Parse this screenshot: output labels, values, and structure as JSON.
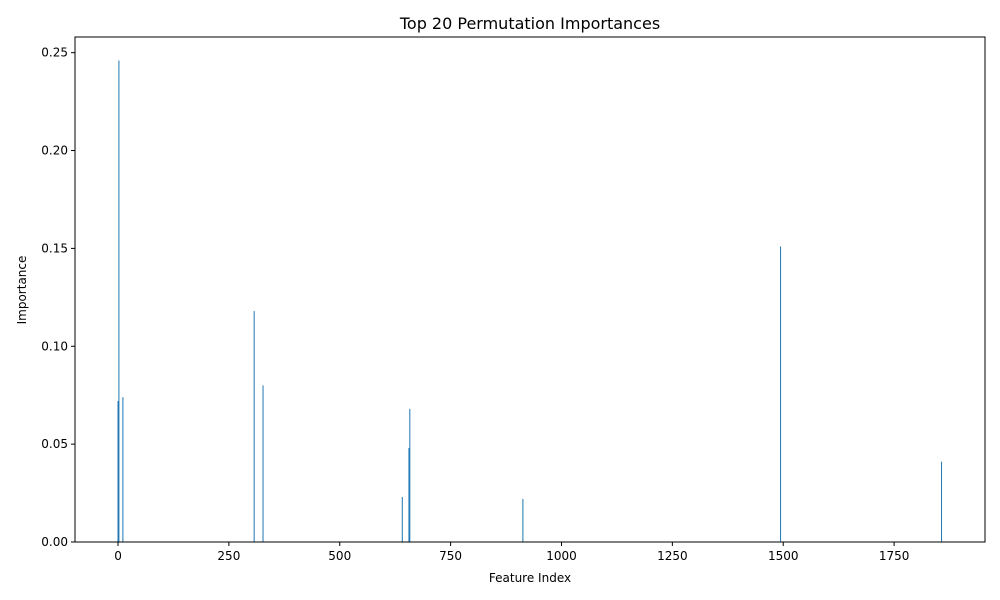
{
  "chart_data": {
    "type": "bar",
    "title": "Top 20 Permutation Importances",
    "xlabel": "Feature Index",
    "ylabel": "Importance",
    "xlim": [
      -97,
      1955
    ],
    "ylim": [
      0,
      0.258
    ],
    "xticks": [
      0,
      250,
      500,
      750,
      1000,
      1250,
      1500,
      1750
    ],
    "xtick_labels": [
      "0",
      "250",
      "500",
      "750",
      "1000",
      "1250",
      "1500",
      "1750"
    ],
    "yticks": [
      0.0,
      0.05,
      0.1,
      0.15,
      0.2,
      0.25
    ],
    "ytick_labels": [
      "0.00",
      "0.05",
      "0.10",
      "0.15",
      "0.20",
      "0.25"
    ],
    "bar_color": "#1f77b4",
    "grid": false,
    "points": [
      {
        "x": 0,
        "value": 0.072
      },
      {
        "x": 2,
        "value": 0.246
      },
      {
        "x": 11,
        "value": 0.074
      },
      {
        "x": 307,
        "value": 0.118
      },
      {
        "x": 327,
        "value": 0.08
      },
      {
        "x": 641,
        "value": 0.023
      },
      {
        "x": 656,
        "value": 0.048
      },
      {
        "x": 658,
        "value": 0.068
      },
      {
        "x": 913,
        "value": 0.022
      },
      {
        "x": 1494,
        "value": 0.151
      },
      {
        "x": 1857,
        "value": 0.041
      }
    ]
  }
}
